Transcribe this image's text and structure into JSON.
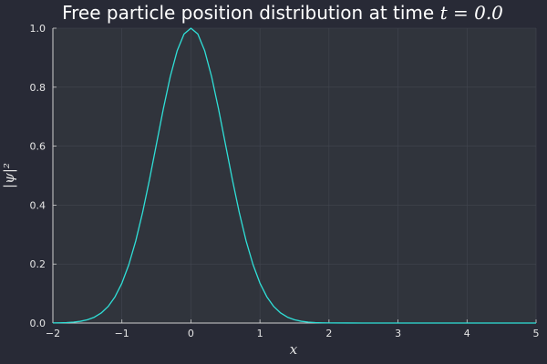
{
  "chart_data": {
    "type": "line",
    "title": {
      "prefix": "Free particle position distribution at time ",
      "math": "t = 0.0"
    },
    "xlabel": "x",
    "ylabel": "|ψ|²",
    "xlim": [
      -2,
      5
    ],
    "ylim": [
      0,
      1
    ],
    "xticks": [
      -2,
      -1,
      0,
      1,
      2,
      3,
      4,
      5
    ],
    "xtick_labels": [
      "−2",
      "−1",
      "0",
      "1",
      "2",
      "3",
      "4",
      "5"
    ],
    "yticks": [
      0,
      0.2,
      0.4,
      0.6,
      0.8,
      1.0
    ],
    "ytick_labels": [
      "0.0",
      "0.2",
      "0.4",
      "0.6",
      "0.8",
      "1.0"
    ],
    "grid": true,
    "legend": "none",
    "series": [
      {
        "color": "#2fe0d8",
        "x": [
          -2.0,
          -1.9,
          -1.8,
          -1.7,
          -1.6,
          -1.5,
          -1.4,
          -1.3,
          -1.2,
          -1.1,
          -1.0,
          -0.9,
          -0.8,
          -0.7,
          -0.6,
          -0.5,
          -0.4,
          -0.3,
          -0.2,
          -0.1,
          0.0,
          0.1,
          0.2,
          0.3,
          0.4,
          0.5,
          0.6,
          0.7,
          0.8,
          0.9,
          1.0,
          1.1,
          1.2,
          1.3,
          1.4,
          1.5,
          1.6,
          1.7,
          1.8,
          1.9,
          2.0,
          2.5,
          3.0,
          3.5,
          4.0,
          4.5,
          5.0
        ],
        "y": [
          0.0003,
          0.0007,
          0.0016,
          0.0031,
          0.006,
          0.0111,
          0.0198,
          0.034,
          0.0561,
          0.0889,
          0.1353,
          0.1979,
          0.278,
          0.3753,
          0.4868,
          0.6065,
          0.7261,
          0.8353,
          0.9231,
          0.9802,
          1.0,
          0.9802,
          0.9231,
          0.8353,
          0.7261,
          0.6065,
          0.4868,
          0.3753,
          0.278,
          0.1979,
          0.1353,
          0.0889,
          0.0561,
          0.034,
          0.0198,
          0.0111,
          0.006,
          0.0031,
          0.0016,
          0.0007,
          0.0003,
          0.0,
          0.0,
          0.0,
          0.0,
          0.0,
          0.0
        ]
      }
    ]
  },
  "colors": {
    "background": "#282a36",
    "plot_area": "#30343c",
    "grid": "#424650",
    "axis": "#d0d0d0",
    "text": "#e6e6e6",
    "line": "#2fe0d8"
  }
}
